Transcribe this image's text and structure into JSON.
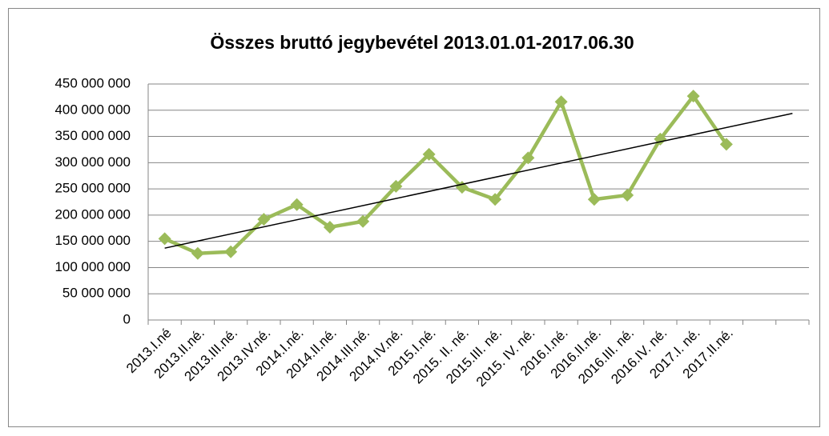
{
  "chart_data": {
    "type": "line",
    "title": "Összes bruttó jegybevétel  2013.01.01-2017.06.30",
    "categories": [
      "2013.I.né",
      "2013.II.né.",
      "2013.III.né.",
      "2013.IV.né.",
      "2014.I.né.",
      "2014.II.né.",
      "2014.III.né.",
      "2014.IV.né.",
      "2015.I.né.",
      "2015. II. né.",
      "2015.III. né.",
      "2015. IV. né.",
      "2016.I.né.",
      "2016.II.né.",
      "2016.III. né.",
      "2016.IV. né.",
      "2017.I. né.",
      "2017.II.né.",
      null,
      null
    ],
    "series": [
      {
        "color": "#9bbb59",
        "values": [
          155000000,
          127000000,
          130000000,
          192000000,
          220000000,
          177000000,
          188000000,
          255000000,
          316000000,
          253000000,
          230000000,
          309000000,
          416000000,
          230000000,
          238000000,
          345000000,
          427000000,
          335000000,
          null,
          null
        ]
      }
    ],
    "trendline": {
      "color": "#000000",
      "start": 137000000,
      "end": 394000000
    },
    "ylim": [
      0,
      450000000
    ],
    "yticks": [
      0,
      {
        "value": 50000000,
        "label": "50 000 000"
      },
      {
        "value": 100000000,
        "label": "100 000 000"
      },
      {
        "value": 150000000,
        "label": "150 000 000"
      },
      {
        "value": 200000000,
        "label": "200 000 000"
      },
      {
        "value": 250000000,
        "label": "250 000 000"
      },
      {
        "value": 300000000,
        "label": "300 000 000"
      },
      {
        "value": 350000000,
        "label": "350 000 000"
      },
      {
        "value": 400000000,
        "label": "400 000 000"
      },
      {
        "value": 450000000,
        "label": "450 000 000"
      }
    ],
    "grid": true
  }
}
